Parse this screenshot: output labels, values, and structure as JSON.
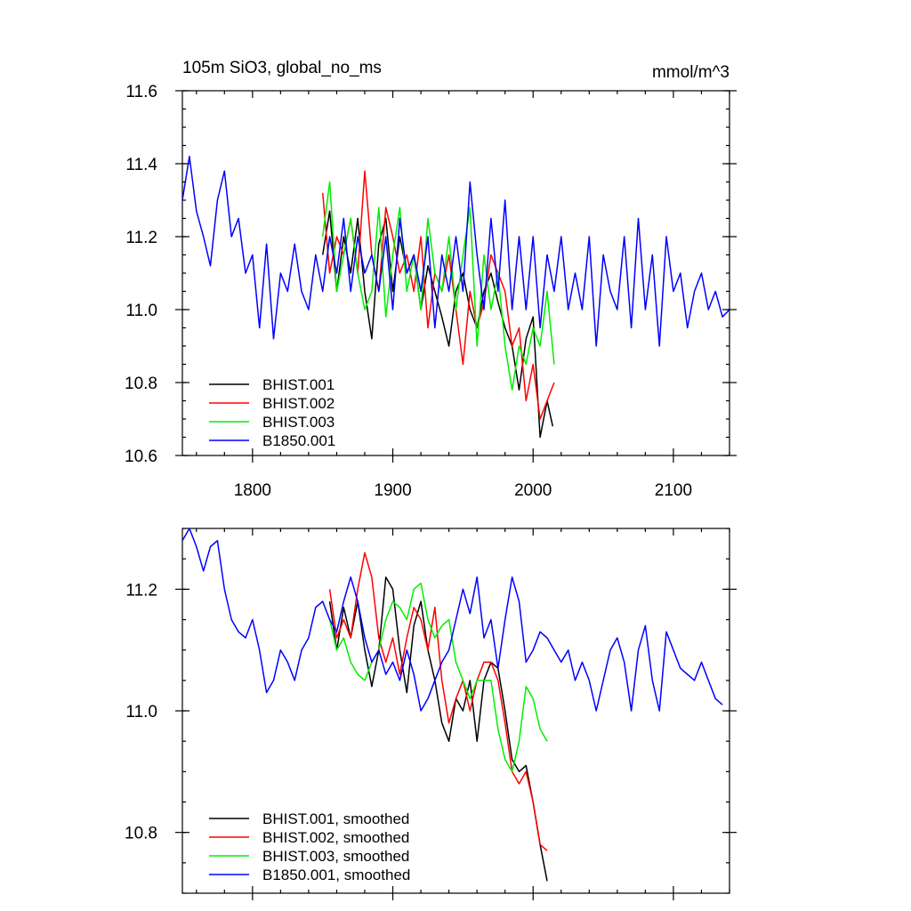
{
  "chart_data": [
    {
      "type": "line",
      "title": "105m SiO3, global_no_ms",
      "units": "mmol/m^3",
      "xlim": [
        1750,
        2140
      ],
      "ylim": [
        10.6,
        11.6
      ],
      "xticks": [
        1800,
        1900,
        2000,
        2100
      ],
      "yticks": [
        10.6,
        10.8,
        11.0,
        11.2,
        11.4,
        11.6
      ],
      "x_tick_labels_shown": true,
      "legend_position": "bottom-left",
      "series": [
        {
          "name": "BHIST.001",
          "color": "#000000",
          "x": [
            1850,
            1855,
            1860,
            1865,
            1870,
            1875,
            1880,
            1885,
            1890,
            1895,
            1900,
            1905,
            1910,
            1915,
            1920,
            1925,
            1930,
            1935,
            1940,
            1945,
            1950,
            1955,
            1960,
            1965,
            1970,
            1975,
            1980,
            1985,
            1990,
            1995,
            2000,
            2005,
            2010,
            2014
          ],
          "y": [
            11.15,
            11.27,
            11.05,
            11.2,
            11.1,
            11.25,
            11.05,
            10.92,
            11.18,
            11.25,
            11.05,
            11.2,
            11.1,
            11.15,
            11.0,
            11.12,
            11.05,
            10.98,
            10.9,
            11.05,
            11.1,
            11.0,
            10.95,
            11.05,
            11.1,
            11.02,
            10.95,
            10.9,
            10.78,
            10.92,
            10.98,
            10.65,
            10.75,
            10.68
          ]
        },
        {
          "name": "BHIST.002",
          "color": "#ff0000",
          "x": [
            1850,
            1855,
            1860,
            1865,
            1870,
            1875,
            1880,
            1885,
            1890,
            1895,
            1900,
            1905,
            1910,
            1915,
            1920,
            1925,
            1930,
            1935,
            1940,
            1945,
            1950,
            1955,
            1960,
            1965,
            1970,
            1975,
            1980,
            1985,
            1990,
            1995,
            2000,
            2005,
            2010,
            2015
          ],
          "y": [
            11.32,
            11.1,
            11.2,
            11.15,
            11.25,
            11.1,
            11.38,
            11.15,
            11.05,
            11.28,
            11.2,
            11.1,
            11.15,
            11.05,
            11.2,
            10.95,
            11.1,
            11.05,
            11.15,
            11.0,
            10.85,
            11.05,
            10.95,
            11.02,
            11.15,
            11.1,
            11.05,
            10.9,
            10.95,
            10.75,
            10.85,
            10.7,
            10.75,
            10.8
          ]
        },
        {
          "name": "BHIST.003",
          "color": "#00ee00",
          "x": [
            1850,
            1855,
            1860,
            1865,
            1870,
            1875,
            1880,
            1885,
            1890,
            1895,
            1900,
            1905,
            1910,
            1915,
            1920,
            1925,
            1930,
            1935,
            1940,
            1945,
            1950,
            1955,
            1960,
            1965,
            1970,
            1975,
            1980,
            1985,
            1990,
            1995,
            2000,
            2005,
            2010,
            2015
          ],
          "y": [
            11.2,
            11.35,
            11.05,
            11.15,
            11.25,
            11.1,
            11.0,
            11.05,
            11.28,
            10.98,
            11.15,
            11.28,
            11.05,
            11.15,
            11.0,
            11.25,
            11.1,
            11.05,
            11.2,
            11.0,
            11.15,
            11.28,
            10.9,
            11.15,
            11.0,
            11.1,
            10.9,
            10.78,
            10.9,
            10.85,
            10.95,
            10.9,
            11.05,
            10.85
          ]
        },
        {
          "name": "B1850.001",
          "color": "#0000ff",
          "x": [
            1750,
            1755,
            1760,
            1765,
            1770,
            1775,
            1780,
            1785,
            1790,
            1795,
            1800,
            1805,
            1810,
            1815,
            1820,
            1825,
            1830,
            1835,
            1840,
            1845,
            1850,
            1855,
            1860,
            1865,
            1870,
            1875,
            1880,
            1885,
            1890,
            1895,
            1900,
            1905,
            1910,
            1915,
            1920,
            1925,
            1930,
            1935,
            1940,
            1945,
            1950,
            1955,
            1960,
            1965,
            1970,
            1975,
            1980,
            1985,
            1990,
            1995,
            2000,
            2005,
            2010,
            2015,
            2020,
            2025,
            2030,
            2035,
            2040,
            2045,
            2050,
            2055,
            2060,
            2065,
            2070,
            2075,
            2080,
            2085,
            2090,
            2095,
            2100,
            2105,
            2110,
            2115,
            2120,
            2125,
            2130,
            2135,
            2140
          ],
          "y": [
            11.3,
            11.42,
            11.27,
            11.2,
            11.12,
            11.3,
            11.38,
            11.2,
            11.25,
            11.1,
            11.15,
            10.95,
            11.18,
            10.92,
            11.1,
            11.05,
            11.18,
            11.05,
            11.0,
            11.15,
            11.05,
            11.2,
            11.1,
            11.25,
            11.05,
            11.2,
            11.1,
            11.15,
            11.05,
            11.2,
            11.0,
            11.25,
            11.1,
            11.15,
            11.05,
            11.2,
            10.95,
            11.15,
            11.05,
            11.2,
            11.05,
            11.35,
            11.15,
            11.0,
            11.25,
            11.05,
            11.3,
            11.0,
            11.2,
            11.0,
            11.2,
            10.95,
            11.15,
            11.05,
            11.2,
            11.0,
            11.1,
            11.0,
            11.2,
            10.9,
            11.15,
            11.05,
            11.0,
            11.2,
            10.95,
            11.25,
            11.0,
            11.15,
            10.9,
            11.2,
            11.05,
            11.1,
            10.95,
            11.05,
            11.1,
            11.0,
            11.05,
            10.98,
            11.0
          ]
        }
      ]
    },
    {
      "type": "line",
      "xlim": [
        1750,
        2140
      ],
      "ylim": [
        10.7,
        11.3
      ],
      "xticks": [
        1800,
        1900,
        2000,
        2100
      ],
      "yticks": [
        10.8,
        11.0,
        11.2
      ],
      "x_tick_labels_shown": false,
      "legend_position": "bottom-left",
      "series": [
        {
          "name": "BHIST.001, smoothed",
          "color": "#000000",
          "x": [
            1855,
            1860,
            1865,
            1870,
            1875,
            1880,
            1885,
            1890,
            1895,
            1900,
            1905,
            1910,
            1915,
            1920,
            1925,
            1930,
            1935,
            1940,
            1945,
            1950,
            1955,
            1960,
            1965,
            1970,
            1975,
            1980,
            1985,
            1990,
            1995,
            2000,
            2005,
            2010
          ],
          "y": [
            11.18,
            11.1,
            11.17,
            11.12,
            11.18,
            11.1,
            11.04,
            11.1,
            11.22,
            11.2,
            11.1,
            11.03,
            11.14,
            11.18,
            11.1,
            11.05,
            10.98,
            10.95,
            11.02,
            11.0,
            11.05,
            10.95,
            11.05,
            11.08,
            11.07,
            11.0,
            10.92,
            10.9,
            10.91,
            10.85,
            10.78,
            10.72
          ]
        },
        {
          "name": "BHIST.002, smoothed",
          "color": "#ff0000",
          "x": [
            1855,
            1860,
            1865,
            1870,
            1875,
            1880,
            1885,
            1890,
            1895,
            1900,
            1905,
            1910,
            1915,
            1920,
            1925,
            1930,
            1935,
            1940,
            1945,
            1950,
            1955,
            1960,
            1965,
            1970,
            1975,
            1980,
            1985,
            1990,
            1995,
            2000,
            2005,
            2010
          ],
          "y": [
            11.2,
            11.12,
            11.15,
            11.12,
            11.2,
            11.26,
            11.22,
            11.12,
            11.08,
            11.12,
            11.06,
            11.12,
            11.17,
            11.15,
            11.1,
            11.17,
            11.05,
            10.98,
            11.02,
            11.05,
            11.0,
            11.05,
            11.08,
            11.08,
            11.05,
            10.98,
            10.9,
            10.88,
            10.9,
            10.85,
            10.78,
            10.77
          ]
        },
        {
          "name": "BHIST.003, smoothed",
          "color": "#00ee00",
          "x": [
            1855,
            1860,
            1865,
            1870,
            1875,
            1880,
            1885,
            1890,
            1895,
            1900,
            1905,
            1910,
            1915,
            1920,
            1925,
            1930,
            1935,
            1940,
            1945,
            1950,
            1955,
            1960,
            1965,
            1970,
            1975,
            1980,
            1985,
            1990,
            1995,
            2000,
            2005,
            2010
          ],
          "y": [
            11.15,
            11.1,
            11.12,
            11.08,
            11.06,
            11.05,
            11.08,
            11.1,
            11.15,
            11.18,
            11.17,
            11.15,
            11.2,
            11.21,
            11.15,
            11.12,
            11.14,
            11.15,
            11.08,
            11.05,
            11.02,
            11.05,
            11.05,
            11.05,
            10.97,
            10.92,
            10.9,
            10.95,
            11.04,
            11.02,
            10.97,
            10.95
          ]
        },
        {
          "name": "B1850.001, smoothed",
          "color": "#0000ff",
          "x": [
            1750,
            1755,
            1760,
            1765,
            1770,
            1775,
            1780,
            1785,
            1790,
            1795,
            1800,
            1805,
            1810,
            1815,
            1820,
            1825,
            1830,
            1835,
            1840,
            1845,
            1850,
            1855,
            1860,
            1865,
            1870,
            1875,
            1880,
            1885,
            1890,
            1895,
            1900,
            1905,
            1910,
            1915,
            1920,
            1925,
            1930,
            1935,
            1940,
            1945,
            1950,
            1955,
            1960,
            1965,
            1970,
            1975,
            1980,
            1985,
            1990,
            1995,
            2000,
            2005,
            2010,
            2015,
            2020,
            2025,
            2030,
            2035,
            2040,
            2045,
            2050,
            2055,
            2060,
            2065,
            2070,
            2075,
            2080,
            2085,
            2090,
            2095,
            2100,
            2105,
            2110,
            2115,
            2120,
            2125,
            2130,
            2135
          ],
          "y": [
            11.28,
            11.3,
            11.27,
            11.23,
            11.27,
            11.28,
            11.2,
            11.15,
            11.13,
            11.12,
            11.15,
            11.1,
            11.03,
            11.05,
            11.1,
            11.08,
            11.05,
            11.1,
            11.12,
            11.17,
            11.18,
            11.15,
            11.13,
            11.18,
            11.22,
            11.18,
            11.12,
            11.08,
            11.1,
            11.06,
            11.08,
            11.05,
            11.1,
            11.06,
            11.0,
            11.02,
            11.05,
            11.08,
            11.1,
            11.15,
            11.2,
            11.16,
            11.22,
            11.12,
            11.15,
            11.07,
            11.15,
            11.22,
            11.18,
            11.08,
            11.1,
            11.13,
            11.12,
            11.1,
            11.08,
            11.1,
            11.05,
            11.08,
            11.05,
            11.0,
            11.05,
            11.1,
            11.12,
            11.08,
            11.0,
            11.1,
            11.14,
            11.05,
            11.0,
            11.13,
            11.1,
            11.07,
            11.06,
            11.05,
            11.08,
            11.05,
            11.02,
            11.01
          ]
        }
      ]
    }
  ]
}
